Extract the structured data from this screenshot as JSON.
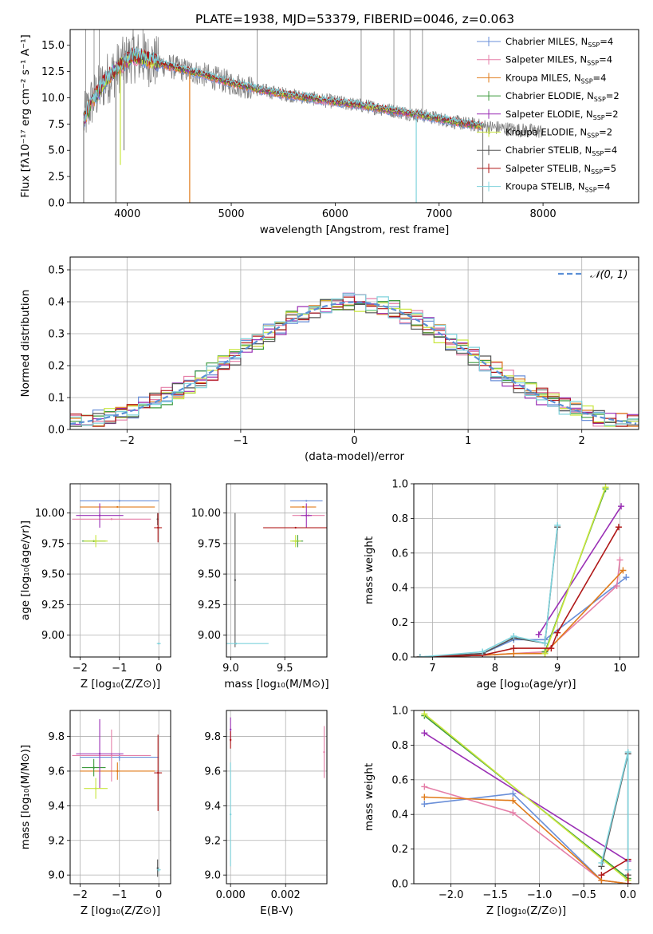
{
  "title": "PLATE=1938, MJD=53379, FIBERID=0046, z=0.063",
  "colors": {
    "Chabrier MILES": "#6a8fd8",
    "Salpeter MILES": "#e57fa8",
    "Kroupa MILES": "#e07b1a",
    "Chabrier ELODIE": "#3c9a3c",
    "Salpeter ELODIE": "#9a2fb5",
    "Kroupa ELODIE": "#c8e63c",
    "Chabrier STELIB": "#555555",
    "Salpeter STELIB": "#b01818",
    "Kroupa STELIB": "#7fd3dc",
    "data": "#808080",
    "normal": "#5b8fd6"
  },
  "chart_data": [
    {
      "type": "line",
      "panel": "spectrum",
      "xlabel": "wavelength [Angstrom, rest frame]",
      "ylabel": "Flux [fλ10⁻¹⁷ erg cm⁻² s⁻¹ A⁻¹]",
      "xlim": [
        3450,
        8920
      ],
      "ylim": [
        0,
        16.5
      ],
      "xticks": [
        4000,
        5000,
        6000,
        7000,
        8000
      ],
      "yticks": [
        0.0,
        2.5,
        5.0,
        7.5,
        10.0,
        12.5,
        15.0
      ],
      "legend_position": "upper right",
      "legend": [
        "Chabrier MILES, N_SSP=4",
        "Salpeter MILES, N_SSP=4",
        "Kroupa MILES, N_SSP=4",
        "Chabrier ELODIE, N_SSP=2",
        "Salpeter ELODIE, N_SSP=2",
        "Kroupa ELODIE, N_SSP=2",
        "Chabrier STELIB, N_SSP=4",
        "Salpeter STELIB, N_SSP=5",
        "Kroupa STELIB, N_SSP=4"
      ],
      "continuum": {
        "x": [
          3580,
          3650,
          3800,
          3950,
          4050,
          4200,
          4400,
          4700,
          5000,
          5300,
          5600,
          6000,
          6300,
          6600,
          6900,
          7200,
          7500,
          7800,
          8000
        ],
        "y": [
          7.8,
          9.5,
          11.8,
          13.2,
          14.0,
          13.6,
          13.0,
          12.3,
          11.4,
          10.7,
          10.2,
          9.6,
          9.2,
          8.7,
          8.2,
          7.6,
          7.2,
          6.9,
          6.8
        ]
      },
      "model_extent_x": [
        3580,
        7420
      ],
      "absorption_spikes": [
        {
          "x": 3580,
          "depth_to": 0.0
        },
        {
          "x": 3890,
          "depth_to": 0.0
        },
        {
          "x": 3933,
          "depth_to": 3.6
        },
        {
          "x": 3968,
          "depth_to": 5.0
        },
        {
          "x": 4600,
          "depth_to": 0.0
        },
        {
          "x": 6780,
          "depth_to": 0.0
        },
        {
          "x": 7420,
          "depth_to": 0.0
        }
      ]
    },
    {
      "type": "line",
      "panel": "residual_histogram",
      "xlabel": "(data-model)/error",
      "ylabel": "Normed distribution",
      "xlim": [
        -2.5,
        2.5
      ],
      "ylim": [
        0,
        0.54
      ],
      "xticks": [
        -2,
        -1,
        0,
        1,
        2
      ],
      "yticks": [
        0.0,
        0.1,
        0.2,
        0.3,
        0.4,
        0.5
      ],
      "legend": [
        "𝒩(0, 1)"
      ],
      "legend_position": "upper right",
      "normal": {
        "mean": 0,
        "sigma": 1
      }
    },
    {
      "type": "scatter",
      "panel": "age_vs_Z",
      "xlabel": "Z [log₁₀(Z/Z⊙)]",
      "ylabel": "age  [log₁₀(age/yr)]",
      "xlim": [
        -2.25,
        0.3
      ],
      "ylim": [
        8.82,
        10.24
      ],
      "xticks": [
        -2,
        -1,
        0
      ],
      "yticks": [
        9.0,
        9.25,
        9.5,
        9.75,
        10.0
      ],
      "points": [
        {
          "model": "Chabrier MILES",
          "x": -1.0,
          "xerr": 1.0,
          "y": 10.1,
          "yerr": 0.0
        },
        {
          "model": "Salpeter MILES",
          "x": -1.2,
          "xerr": 1.0,
          "y": 9.95,
          "yerr": 0.0
        },
        {
          "model": "Kroupa MILES",
          "x": -1.05,
          "xerr": 0.95,
          "y": 10.05,
          "yerr": 0.0
        },
        {
          "model": "Chabrier ELODIE",
          "x": -1.65,
          "xerr": 0.3,
          "y": 9.77,
          "yerr": 0.0
        },
        {
          "model": "Salpeter ELODIE",
          "x": -1.5,
          "xerr": 0.6,
          "y": 9.98,
          "yerr": 0.1
        },
        {
          "model": "Kroupa ELODIE",
          "x": -1.6,
          "xerr": 0.3,
          "y": 9.77,
          "yerr": 0.05
        },
        {
          "model": "Chabrier STELIB",
          "x": -0.03,
          "xerr": 0.0,
          "y": 9.95,
          "yerr": 0.05
        },
        {
          "model": "Salpeter STELIB",
          "x": -0.02,
          "xerr": 0.1,
          "y": 9.88,
          "yerr": 0.12
        },
        {
          "model": "Kroupa STELIB",
          "x": 0.0,
          "xerr": 0.05,
          "y": 8.93,
          "yerr": 0.0
        }
      ]
    },
    {
      "type": "scatter",
      "panel": "age_vs_mass",
      "xlabel": "mass [log₁₀(M/M⊙)]",
      "ylabel": "",
      "xlim": [
        8.96,
        9.89
      ],
      "ylim": [
        8.82,
        10.24
      ],
      "xticks": [
        9.0,
        9.5
      ],
      "yticks": [
        9.0,
        9.25,
        9.5,
        9.75,
        10.0
      ],
      "points": [
        {
          "model": "Chabrier MILES",
          "x": 9.7,
          "xerr": 0.15,
          "y": 10.1,
          "yerr": 0.0
        },
        {
          "model": "Salpeter MILES",
          "x": 9.72,
          "xerr": 0.15,
          "y": 9.98,
          "yerr": 0.0
        },
        {
          "model": "Kroupa MILES",
          "x": 9.67,
          "xerr": 0.12,
          "y": 10.05,
          "yerr": 0.0
        },
        {
          "model": "Chabrier ELODIE",
          "x": 9.62,
          "xerr": 0.05,
          "y": 9.77,
          "yerr": 0.05
        },
        {
          "model": "Salpeter ELODIE",
          "x": 9.7,
          "xerr": 0.05,
          "y": 9.98,
          "yerr": 0.1
        },
        {
          "model": "Kroupa ELODIE",
          "x": 9.6,
          "xerr": 0.05,
          "y": 9.77,
          "yerr": 0.05
        },
        {
          "model": "Chabrier STELIB",
          "x": 9.04,
          "xerr": 0.0,
          "y": 9.45,
          "yerr": 0.55
        },
        {
          "model": "Salpeter STELIB",
          "x": 9.6,
          "xerr": 0.3,
          "y": 9.88,
          "yerr": 0.0
        },
        {
          "model": "Kroupa STELIB",
          "x": 9.05,
          "xerr": 0.3,
          "y": 8.93,
          "yerr": 0.0
        }
      ]
    },
    {
      "type": "line",
      "panel": "mass_weight_vs_age",
      "xlabel": "age  [log₁₀(age/yr)]",
      "ylabel": "mass weight",
      "xlim": [
        6.7,
        10.3
      ],
      "ylim": [
        0,
        1.0
      ],
      "xticks": [
        7,
        8,
        9,
        10
      ],
      "yticks": [
        0.0,
        0.2,
        0.4,
        0.6,
        0.8,
        1.0
      ],
      "series": [
        {
          "name": "Chabrier MILES",
          "x": [
            6.8,
            7.8,
            8.3,
            8.8,
            10.1
          ],
          "y": [
            0.0,
            0.02,
            0.1,
            0.1,
            0.46
          ]
        },
        {
          "name": "Salpeter MILES",
          "x": [
            6.8,
            7.8,
            8.3,
            8.8,
            9.95,
            10.0
          ],
          "y": [
            0.0,
            0.01,
            0.02,
            0.03,
            0.41,
            0.56
          ]
        },
        {
          "name": "Kroupa MILES",
          "x": [
            6.8,
            7.8,
            8.3,
            8.8,
            10.05
          ],
          "y": [
            0.0,
            0.01,
            0.02,
            0.02,
            0.5
          ]
        },
        {
          "name": "Chabrier ELODIE",
          "x": [
            8.8,
            9.77
          ],
          "y": [
            0.03,
            0.97
          ]
        },
        {
          "name": "Salpeter ELODIE",
          "x": [
            8.7,
            10.02
          ],
          "y": [
            0.13,
            0.87
          ]
        },
        {
          "name": "Kroupa ELODIE",
          "x": [
            8.8,
            9.77
          ],
          "y": [
            0.02,
            0.98
          ]
        },
        {
          "name": "Chabrier STELIB",
          "x": [
            6.8,
            7.8,
            8.3,
            8.8,
            9.0
          ],
          "y": [
            0.0,
            0.02,
            0.11,
            0.08,
            0.75
          ]
        },
        {
          "name": "Salpeter STELIB",
          "x": [
            6.8,
            7.8,
            8.3,
            8.9,
            9.0,
            9.98
          ],
          "y": [
            0.0,
            0.01,
            0.05,
            0.05,
            0.14,
            0.75
          ]
        },
        {
          "name": "Kroupa STELIB",
          "x": [
            6.8,
            7.8,
            8.3,
            8.8,
            9.0
          ],
          "y": [
            0.0,
            0.03,
            0.12,
            0.08,
            0.76
          ]
        }
      ]
    },
    {
      "type": "scatter",
      "panel": "mass_vs_Z",
      "xlabel": "Z [log₁₀(Z/Z⊙)]",
      "ylabel": "mass [log₁₀(M/M⊙)]",
      "xlim": [
        -2.25,
        0.3
      ],
      "ylim": [
        8.95,
        9.95
      ],
      "xticks": [
        -2,
        -1,
        0
      ],
      "yticks": [
        9.0,
        9.2,
        9.4,
        9.6,
        9.8
      ],
      "points": [
        {
          "model": "Chabrier MILES",
          "x": -1.0,
          "xerr": 1.0,
          "y": 9.68,
          "yerr": 0.02
        },
        {
          "model": "Salpeter MILES",
          "x": -1.2,
          "xerr": 1.0,
          "y": 9.69,
          "yerr": 0.15
        },
        {
          "model": "Kroupa MILES",
          "x": -1.05,
          "xerr": 0.95,
          "y": 9.6,
          "yerr": 0.05
        },
        {
          "model": "Chabrier ELODIE",
          "x": -1.65,
          "xerr": 0.3,
          "y": 9.62,
          "yerr": 0.05
        },
        {
          "model": "Salpeter ELODIE",
          "x": -1.5,
          "xerr": 0.6,
          "y": 9.7,
          "yerr": 0.2
        },
        {
          "model": "Kroupa ELODIE",
          "x": -1.6,
          "xerr": 0.3,
          "y": 9.5,
          "yerr": 0.06
        },
        {
          "model": "Chabrier STELIB",
          "x": -0.03,
          "xerr": 0.0,
          "y": 9.04,
          "yerr": 0.05
        },
        {
          "model": "Salpeter STELIB",
          "x": -0.02,
          "xerr": 0.1,
          "y": 9.59,
          "yerr": 0.22
        },
        {
          "model": "Kroupa STELIB",
          "x": 0.0,
          "xerr": 0.05,
          "y": 9.03,
          "yerr": 0.01
        }
      ]
    },
    {
      "type": "scatter",
      "panel": "mass_vs_EBV",
      "xlabel": "E(B-V)",
      "ylabel": "",
      "xlim": [
        -0.00015,
        0.0035
      ],
      "ylim": [
        8.95,
        9.95
      ],
      "xticks": [
        0.0,
        0.002
      ],
      "yticks": [
        9.0,
        9.2,
        9.4,
        9.6,
        9.8
      ],
      "points": [
        {
          "model": "Salpeter ELODIE",
          "x": 0.0,
          "y": 9.84,
          "yerr": 0.07
        },
        {
          "model": "Salpeter STELIB",
          "x": 0.0,
          "y": 9.78,
          "yerr": 0.05
        },
        {
          "model": "Kroupa STELIB",
          "x": 0.0,
          "y": 9.35,
          "yerr": 0.3
        },
        {
          "model": "Salpeter MILES",
          "x": 0.0034,
          "y": 9.71,
          "yerr": 0.15
        }
      ]
    },
    {
      "type": "line",
      "panel": "mass_weight_vs_Z",
      "xlabel": "Z [log₁₀(Z/Z⊙)]",
      "ylabel": "mass weight",
      "xlim": [
        -2.42,
        0.12
      ],
      "ylim": [
        0,
        1.0
      ],
      "xticks": [
        -2.0,
        -1.5,
        -1.0,
        -0.5,
        0.0
      ],
      "yticks": [
        0.0,
        0.2,
        0.4,
        0.6,
        0.8,
        1.0
      ],
      "series": [
        {
          "name": "Chabrier MILES",
          "x": [
            -2.3,
            -1.3,
            -0.3,
            0.0
          ],
          "y": [
            0.46,
            0.52,
            0.02,
            0.0
          ]
        },
        {
          "name": "Salpeter MILES",
          "x": [
            -2.3,
            -1.3,
            -0.3,
            0.0
          ],
          "y": [
            0.56,
            0.41,
            0.02,
            0.0
          ]
        },
        {
          "name": "Kroupa MILES",
          "x": [
            -2.3,
            -1.3,
            -0.3,
            0.0
          ],
          "y": [
            0.5,
            0.48,
            0.02,
            0.0
          ]
        },
        {
          "name": "Chabrier ELODIE",
          "x": [
            -2.3,
            0.0
          ],
          "y": [
            0.97,
            0.03
          ]
        },
        {
          "name": "Salpeter ELODIE",
          "x": [
            -2.3,
            0.0
          ],
          "y": [
            0.87,
            0.13
          ]
        },
        {
          "name": "Kroupa ELODIE",
          "x": [
            -2.3,
            0.0
          ],
          "y": [
            0.98,
            0.02
          ]
        },
        {
          "name": "Chabrier STELIB",
          "x": [
            -0.3,
            0.0,
            0.0
          ],
          "y": [
            0.1,
            0.75,
            0.05
          ]
        },
        {
          "name": "Salpeter STELIB",
          "x": [
            -0.3,
            0.0,
            0.0
          ],
          "y": [
            0.05,
            0.14,
            0.0
          ]
        },
        {
          "name": "Kroupa STELIB",
          "x": [
            -0.3,
            0.0,
            0.0
          ],
          "y": [
            0.12,
            0.76,
            0.08
          ]
        }
      ]
    }
  ]
}
